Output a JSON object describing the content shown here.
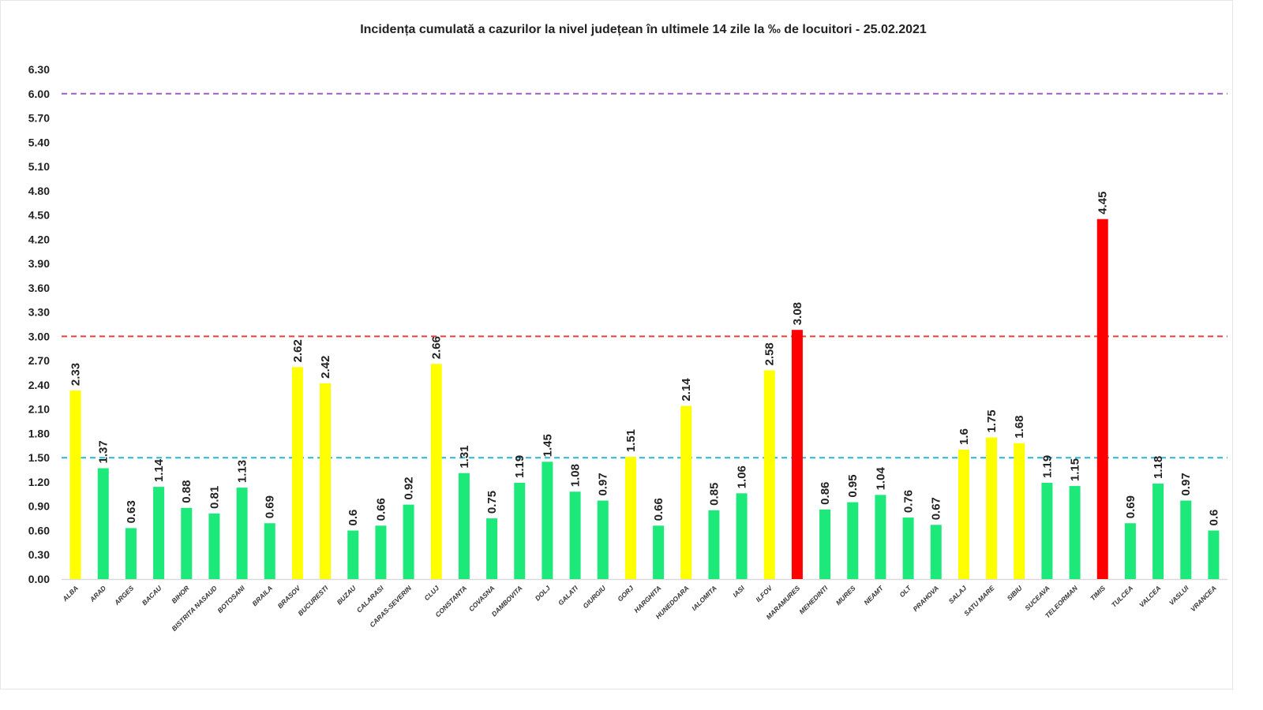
{
  "chart_data": {
    "type": "bar",
    "title": "Incidența cumulată a cazurilor la nivel județean în ultimele 14 zile   la ‰ de locuitori  - 25.02.2021",
    "xlabel": "",
    "ylabel": "",
    "ylim": [
      0,
      6.3
    ],
    "yticks": [
      "0.00",
      "0.30",
      "0.60",
      "0.90",
      "1.20",
      "1.50",
      "1.80",
      "2.10",
      "2.40",
      "2.70",
      "3.00",
      "3.30",
      "3.60",
      "3.90",
      "4.20",
      "4.50",
      "4.80",
      "5.10",
      "5.40",
      "5.70",
      "6.00",
      "6.30"
    ],
    "grid": false,
    "legend": "none",
    "categories": [
      "ALBA",
      "ARAD",
      "ARGES",
      "BACAU",
      "BIHOR",
      "BISTRITA NASAUD",
      "BOTOSANI",
      "BRAILA",
      "BRASOV",
      "BUCURESTI",
      "BUZAU",
      "CALARASI",
      "CARAS-SEVERIN",
      "CLUJ",
      "CONSTANTA",
      "COVASNA",
      "DAMBOVITA",
      "DOLJ",
      "GALATI",
      "GIURGIU",
      "GORJ",
      "HARGHITA",
      "HUNEDOARA",
      "IALOMITA",
      "IASI",
      "ILFOV",
      "MARAMURES",
      "MEHEDINTI",
      "MURES",
      "NEAMT",
      "OLT",
      "PRAHOVA",
      "SALAJ",
      "SATU MARE",
      "SIBIU",
      "SUCEAVA",
      "TELEORMAN",
      "TIMIS",
      "TULCEA",
      "VALCEA",
      "VASLUI",
      "VRANCEA"
    ],
    "values": [
      2.33,
      1.37,
      0.63,
      1.14,
      0.88,
      0.81,
      1.13,
      0.69,
      2.62,
      2.42,
      0.6,
      0.66,
      0.92,
      2.66,
      1.31,
      0.75,
      1.19,
      1.45,
      1.08,
      0.97,
      1.51,
      0.66,
      2.14,
      0.85,
      1.06,
      2.58,
      3.08,
      0.86,
      0.95,
      1.04,
      0.76,
      0.67,
      1.6,
      1.75,
      1.68,
      1.19,
      1.15,
      4.45,
      0.69,
      1.18,
      0.97,
      0.6
    ],
    "data_labels": [
      "2.33",
      "1.37",
      "0.63",
      "1.14",
      "0.88",
      "0.81",
      "1.13",
      "0.69",
      "2.62",
      "2.42",
      "0.6",
      "0.66",
      "0.92",
      "2.66",
      "1.31",
      "0.75",
      "1.19",
      "1.45",
      "1.08",
      "0.97",
      "1.51",
      "0.66",
      "2.14",
      "0.85",
      "1.06",
      "2.58",
      "3.08",
      "0.86",
      "0.95",
      "1.04",
      "0.76",
      "0.67",
      "1.6",
      "1.75",
      "1.68",
      "1.19",
      "1.15",
      "4.45",
      "0.69",
      "1.18",
      "0.97",
      "0.6"
    ],
    "color_rule": {
      "low": "#1de87a",
      "mid": "#ffff00",
      "high": "#ff0000",
      "mid_from": 1.5,
      "high_from": 3.0
    },
    "reference_lines": [
      {
        "value": 6.0,
        "color": "#9e5fc4",
        "style": "dashed"
      },
      {
        "value": 3.0,
        "color": "#e8403a",
        "style": "dashed"
      },
      {
        "value": 1.5,
        "color": "#2bb5d8",
        "style": "dashed"
      }
    ]
  }
}
